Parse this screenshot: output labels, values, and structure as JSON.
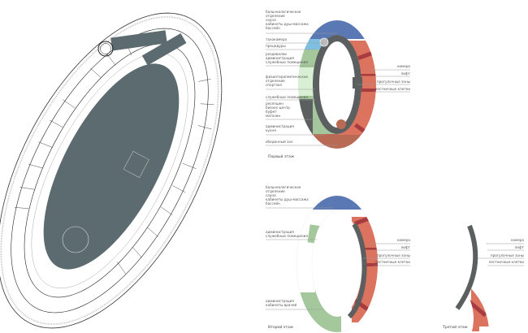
{
  "colors": {
    "blue": "#5a78b4",
    "light_blue": "#7fc0e2",
    "green": "#a4c79c",
    "light_green": "#d8efd4",
    "gray": "#5b5f5f",
    "coral": "#dc735f",
    "dark_red": "#a63c40",
    "brown": "#b86a55",
    "plan_fill": "#5b6b70"
  },
  "floor1": {
    "title": "Первый этаж",
    "left_labels": [
      {
        "lines": [
          "бальнеологическое",
          "отделение",
          "сауна",
          "кабинеты душ-массажа",
          "бассейн"
        ]
      },
      {
        "lines": [
          "тахокамера"
        ]
      },
      {
        "lines": [
          "процедуры"
        ]
      },
      {
        "lines": [
          "раздевалки",
          "администрация",
          "служебные помещения"
        ]
      },
      {
        "lines": [
          "физиотерапевтическое",
          "отделение",
          "спортзал"
        ]
      },
      {
        "lines": [
          "служебные помещения"
        ]
      },
      {
        "lines": [
          "ресепшен",
          "бизнес-центр",
          "буфет",
          "магазин"
        ]
      },
      {
        "lines": [
          "администрация",
          "кухня"
        ]
      },
      {
        "lines": [
          "обеденный зал"
        ]
      }
    ],
    "right_labels": [
      "номера",
      "лифт",
      "прогулочные зоны",
      "лестничные клетки"
    ]
  },
  "floor2": {
    "title": "Второй этаж",
    "left_labels": [
      {
        "lines": [
          "бальнеологическое",
          "отделение",
          "сауна",
          "кабинеты душ-массажа",
          "бассейн"
        ]
      },
      {
        "lines": [
          "администрация",
          "служебные помещения"
        ]
      },
      {
        "lines": [
          "администрация",
          "кабинеты врачей"
        ]
      }
    ],
    "right_labels": [
      "номера",
      "лифт",
      "прогулочные зоны",
      "лестничные клетки"
    ]
  },
  "floor3": {
    "title": "Третий этаж",
    "right_labels": [
      "номера",
      "лифт",
      "прогулочные зоны",
      "лестничные клетки"
    ]
  }
}
